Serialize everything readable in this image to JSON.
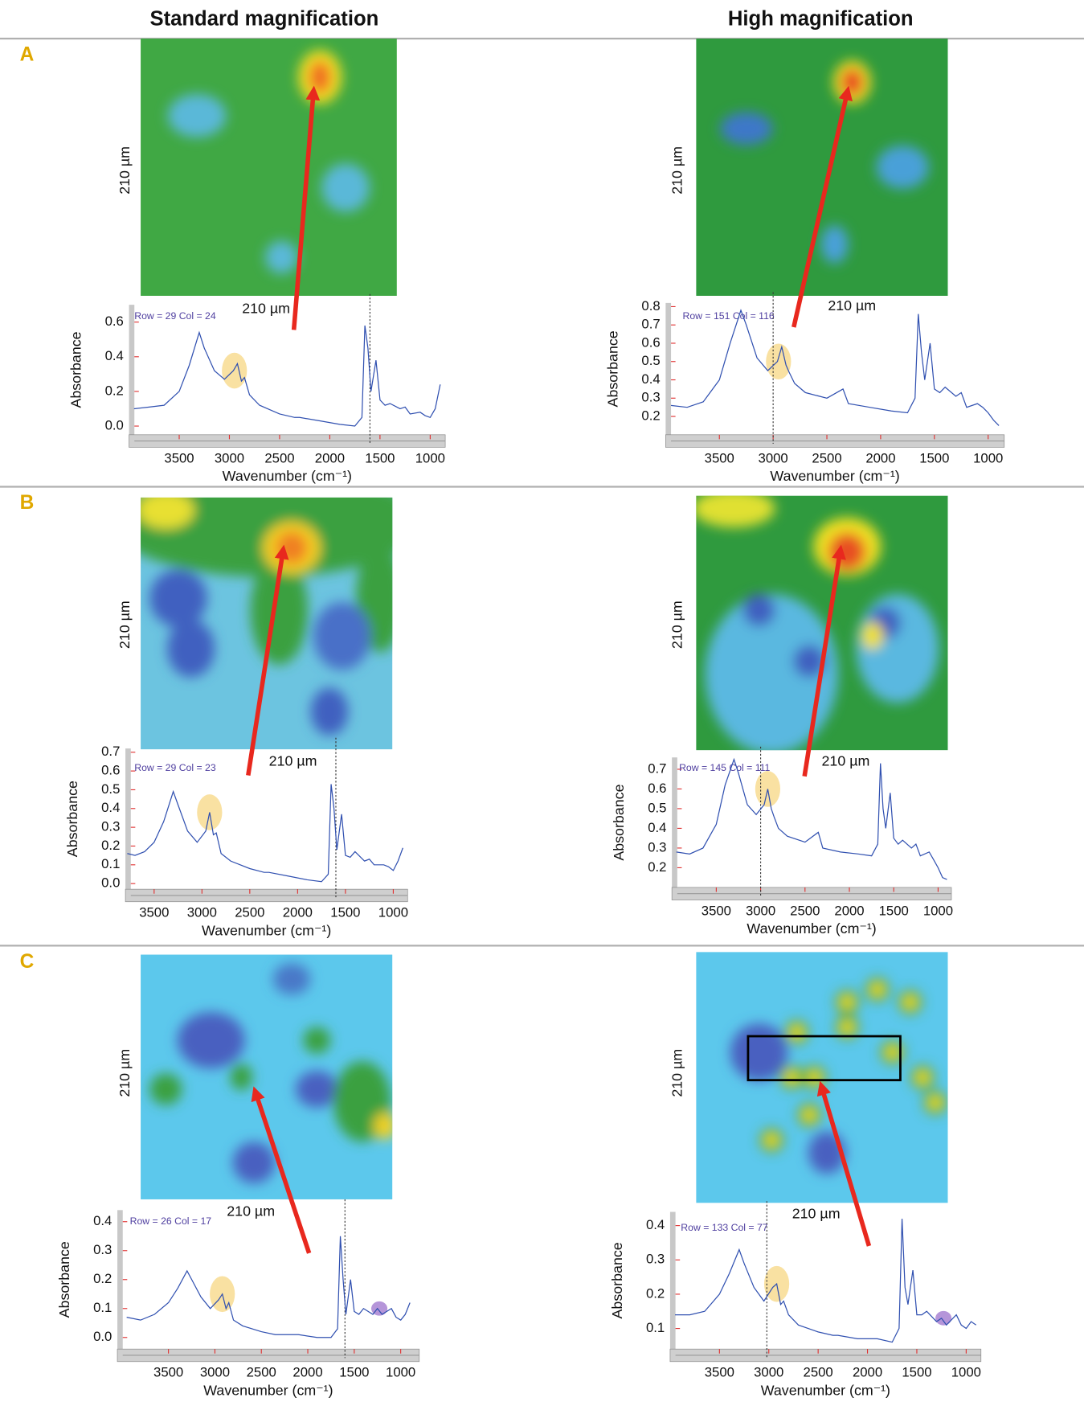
{
  "headers": [
    "Standard magnification",
    "High magnification"
  ],
  "row_labels": [
    "A",
    "B",
    "C"
  ],
  "chart_data": [
    {
      "type": "line",
      "annotation": "Row = 29 Col = 24",
      "image_width_label": "210 µm",
      "image_height_label": "210 µm",
      "x_label": "Wavenumber (cm⁻¹)",
      "y_label": "Absorbance",
      "color": "#3050b0",
      "x": [
        3950,
        3800,
        3650,
        3500,
        3400,
        3300,
        3250,
        3150,
        3050,
        2960,
        2920,
        2880,
        2850,
        2800,
        2700,
        2500,
        2350,
        2300,
        2100,
        1900,
        1750,
        1680,
        1650,
        1620,
        1590,
        1540,
        1500,
        1450,
        1400,
        1300,
        1250,
        1200,
        1100,
        1050,
        1000,
        950,
        900
      ],
      "values": [
        0.1,
        0.11,
        0.12,
        0.2,
        0.35,
        0.54,
        0.45,
        0.32,
        0.27,
        0.32,
        0.36,
        0.26,
        0.28,
        0.18,
        0.12,
        0.07,
        0.05,
        0.05,
        0.03,
        0.01,
        0.0,
        0.05,
        0.58,
        0.45,
        0.2,
        0.38,
        0.15,
        0.12,
        0.13,
        0.1,
        0.11,
        0.07,
        0.08,
        0.06,
        0.05,
        0.1,
        0.24
      ],
      "xlim": [
        4000,
        850
      ],
      "xticks": [
        3500,
        3000,
        2500,
        2000,
        1500,
        1000
      ],
      "ylim": [
        -0.05,
        0.7
      ],
      "yticks": [
        {
          "value": 0,
          "label": "0.0"
        },
        0.2,
        0.4,
        0.6
      ],
      "cursor_x": 1600,
      "highlights": [
        {
          "x": 2950,
          "color": "#f7d98b"
        }
      ]
    },
    {
      "type": "line",
      "annotation": "Row = 151 Col = 116",
      "image_width_label": "210 µm",
      "image_height_label": "210 µm",
      "x_label": "Wavenumber (cm⁻¹)",
      "y_label": "Absorbance",
      "color": "#3050b0",
      "x": [
        3950,
        3800,
        3650,
        3500,
        3400,
        3300,
        3250,
        3150,
        3050,
        2960,
        2920,
        2880,
        2850,
        2800,
        2700,
        2500,
        2350,
        2300,
        2100,
        1900,
        1750,
        1680,
        1650,
        1620,
        1590,
        1540,
        1500,
        1450,
        1400,
        1300,
        1250,
        1200,
        1100,
        1050,
        1000,
        950,
        900
      ],
      "values": [
        0.26,
        0.25,
        0.28,
        0.4,
        0.6,
        0.78,
        0.7,
        0.52,
        0.45,
        0.5,
        0.58,
        0.48,
        0.44,
        0.38,
        0.33,
        0.3,
        0.35,
        0.27,
        0.25,
        0.23,
        0.22,
        0.3,
        0.76,
        0.55,
        0.4,
        0.6,
        0.35,
        0.33,
        0.36,
        0.31,
        0.33,
        0.25,
        0.27,
        0.25,
        0.22,
        0.18,
        0.15
      ],
      "xlim": [
        4000,
        850
      ],
      "xticks": [
        3500,
        3000,
        2500,
        2000,
        1500,
        1000
      ],
      "ylim": [
        0.1,
        0.82
      ],
      "yticks": [
        0.2,
        0.3,
        0.4,
        0.5,
        0.6,
        0.7,
        0.8
      ],
      "cursor_x": 3000,
      "highlights": [
        {
          "x": 2950,
          "color": "#f7d98b"
        }
      ]
    },
    {
      "type": "line",
      "annotation": "Row = 29 Col = 23",
      "image_width_label": "210 µm",
      "image_height_label": "210 µm",
      "x_label": "Wavenumber (cm⁻¹)",
      "y_label": "Absorbance",
      "color": "#3050b0",
      "x": [
        3780,
        3700,
        3600,
        3500,
        3400,
        3300,
        3250,
        3150,
        3050,
        2960,
        2920,
        2880,
        2850,
        2800,
        2700,
        2500,
        2350,
        2300,
        2100,
        1900,
        1750,
        1680,
        1650,
        1620,
        1590,
        1540,
        1500,
        1450,
        1400,
        1300,
        1250,
        1200,
        1100,
        1050,
        1000,
        950,
        900
      ],
      "values": [
        0.16,
        0.15,
        0.17,
        0.22,
        0.33,
        0.49,
        0.42,
        0.28,
        0.22,
        0.28,
        0.38,
        0.26,
        0.27,
        0.16,
        0.12,
        0.08,
        0.06,
        0.06,
        0.04,
        0.02,
        0.01,
        0.05,
        0.53,
        0.4,
        0.18,
        0.37,
        0.15,
        0.14,
        0.17,
        0.12,
        0.13,
        0.1,
        0.1,
        0.09,
        0.07,
        0.12,
        0.19
      ],
      "xlim": [
        3800,
        850
      ],
      "xticks": [
        3500,
        3000,
        2500,
        2000,
        1500,
        1000
      ],
      "ylim": [
        -0.03,
        0.72
      ],
      "yticks": [
        {
          "value": 0,
          "label": "0.0"
        },
        0.1,
        0.2,
        0.3,
        0.4,
        0.5,
        0.6,
        0.7
      ],
      "cursor_x": 1600,
      "highlights": [
        {
          "x": 2920,
          "color": "#f7d98b"
        }
      ]
    },
    {
      "type": "line",
      "annotation": "Row = 145 Col = 111",
      "image_width_label": "210 µm",
      "image_height_label": "210 µm",
      "x_label": "Wavenumber (cm⁻¹)",
      "y_label": "Absorbance",
      "color": "#3050b0",
      "x": [
        3950,
        3800,
        3650,
        3500,
        3400,
        3300,
        3250,
        3150,
        3050,
        2960,
        2920,
        2880,
        2850,
        2800,
        2700,
        2500,
        2350,
        2300,
        2100,
        1900,
        1750,
        1680,
        1650,
        1620,
        1590,
        1540,
        1500,
        1450,
        1400,
        1300,
        1250,
        1200,
        1100,
        1050,
        1000,
        950,
        900
      ],
      "values": [
        0.28,
        0.27,
        0.3,
        0.42,
        0.62,
        0.75,
        0.68,
        0.52,
        0.47,
        0.52,
        0.6,
        0.5,
        0.46,
        0.4,
        0.36,
        0.33,
        0.38,
        0.3,
        0.28,
        0.27,
        0.26,
        0.32,
        0.73,
        0.5,
        0.4,
        0.58,
        0.35,
        0.32,
        0.34,
        0.3,
        0.32,
        0.26,
        0.28,
        0.24,
        0.2,
        0.15,
        0.14
      ],
      "xlim": [
        4000,
        850
      ],
      "xticks": [
        3500,
        3000,
        2500,
        2000,
        1500,
        1000
      ],
      "ylim": [
        0.1,
        0.76
      ],
      "yticks": [
        0.2,
        0.3,
        0.4,
        0.5,
        0.6,
        0.7
      ],
      "cursor_x": 3000,
      "highlights": [
        {
          "x": 2920,
          "color": "#f7d98b"
        }
      ]
    },
    {
      "type": "line",
      "annotation": "Row = 26 Col = 17",
      "image_width_label": "210 µm",
      "image_height_label": "210 µm",
      "x_label": "Wavenumber (cm⁻¹)",
      "y_label": "Absorbance",
      "color": "#3050b0",
      "x": [
        3950,
        3800,
        3650,
        3500,
        3400,
        3300,
        3250,
        3150,
        3050,
        2960,
        2920,
        2880,
        2850,
        2800,
        2700,
        2500,
        2350,
        2300,
        2100,
        1900,
        1750,
        1680,
        1650,
        1620,
        1590,
        1540,
        1500,
        1450,
        1400,
        1300,
        1250,
        1200,
        1100,
        1050,
        1000,
        950,
        900
      ],
      "values": [
        0.07,
        0.06,
        0.08,
        0.12,
        0.17,
        0.23,
        0.2,
        0.14,
        0.1,
        0.13,
        0.15,
        0.1,
        0.12,
        0.06,
        0.04,
        0.02,
        0.01,
        0.01,
        0.01,
        0.0,
        0.0,
        0.03,
        0.35,
        0.2,
        0.08,
        0.2,
        0.09,
        0.08,
        0.1,
        0.08,
        0.1,
        0.08,
        0.1,
        0.07,
        0.06,
        0.08,
        0.12
      ],
      "xlim": [
        4050,
        800
      ],
      "xticks": [
        3500,
        3000,
        2500,
        2000,
        1500,
        1000
      ],
      "ylim": [
        -0.04,
        0.44
      ],
      "yticks": [
        {
          "value": 0,
          "label": "0.0"
        },
        0.1,
        0.2,
        0.3,
        0.4
      ],
      "cursor_x": 1600,
      "highlights": [
        {
          "x": 2920,
          "color": "#f7d98b"
        },
        {
          "x": 1230,
          "color": "#a37bd0"
        }
      ]
    },
    {
      "type": "line",
      "annotation": "Row = 133 Col = 77",
      "image_width_label": "210 µm",
      "image_height_label": "210 µm",
      "x_label": "Wavenumber (cm⁻¹)",
      "y_label": "Absorbance",
      "color": "#3050b0",
      "x": [
        3950,
        3800,
        3650,
        3500,
        3400,
        3300,
        3250,
        3150,
        3050,
        2960,
        2920,
        2880,
        2850,
        2800,
        2700,
        2500,
        2350,
        2300,
        2100,
        1900,
        1750,
        1680,
        1650,
        1620,
        1590,
        1540,
        1500,
        1450,
        1400,
        1300,
        1250,
        1200,
        1100,
        1050,
        1000,
        950,
        900
      ],
      "values": [
        0.14,
        0.14,
        0.15,
        0.2,
        0.26,
        0.33,
        0.29,
        0.22,
        0.18,
        0.22,
        0.23,
        0.17,
        0.18,
        0.14,
        0.11,
        0.09,
        0.08,
        0.08,
        0.07,
        0.07,
        0.06,
        0.1,
        0.42,
        0.22,
        0.17,
        0.27,
        0.14,
        0.14,
        0.15,
        0.12,
        0.13,
        0.11,
        0.14,
        0.11,
        0.1,
        0.12,
        0.11
      ],
      "xlim": [
        4000,
        850
      ],
      "xticks": [
        3500,
        3000,
        2500,
        2000,
        1500,
        1000
      ],
      "ylim": [
        0.04,
        0.44
      ],
      "yticks": [
        0.1,
        0.2,
        0.3,
        0.4
      ],
      "cursor_x": 3020,
      "highlights": [
        {
          "x": 2920,
          "color": "#f7d98b"
        },
        {
          "x": 1230,
          "color": "#a37bd0"
        }
      ]
    }
  ]
}
